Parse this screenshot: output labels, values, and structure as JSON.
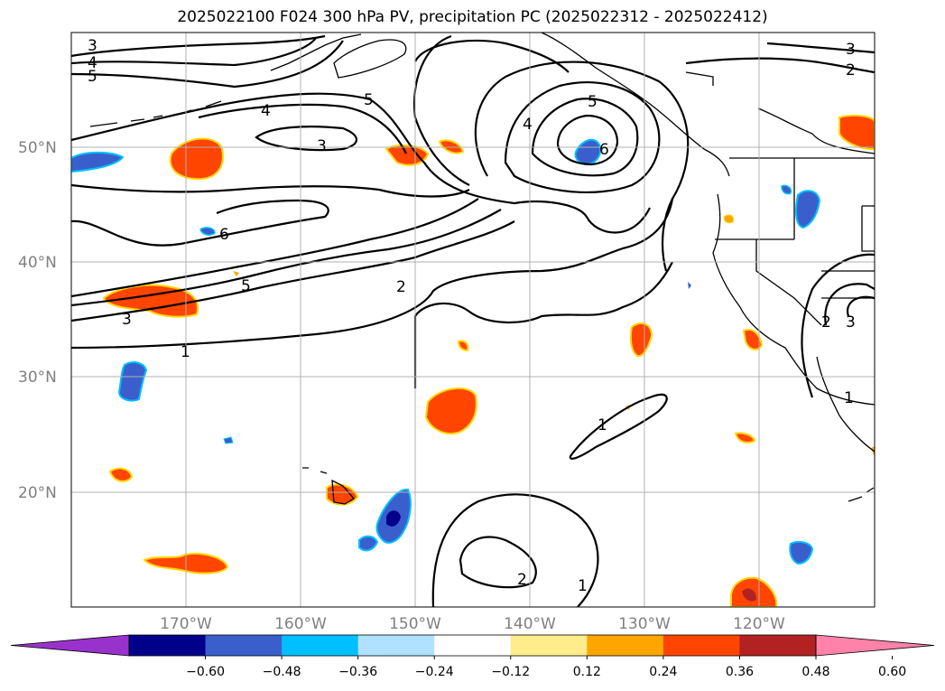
{
  "title": "2025022100 F024 300 hPa PV, precipitation PC (2025022312 - 2025022412)",
  "map": {
    "lon_labels": [
      "170°W",
      "160°W",
      "150°W",
      "140°W",
      "130°W",
      "120°W"
    ],
    "lat_labels": [
      "50°N",
      "40°N",
      "30°N",
      "20°N"
    ],
    "contour_labels": [
      {
        "text": "3",
        "id": "c1"
      },
      {
        "text": "4",
        "id": "c2"
      },
      {
        "text": "5",
        "id": "c3"
      },
      {
        "text": "4",
        "id": "c4"
      },
      {
        "text": "3",
        "id": "c5"
      },
      {
        "text": "5",
        "id": "c6"
      },
      {
        "text": "4",
        "id": "c7"
      },
      {
        "text": "5",
        "id": "c8"
      },
      {
        "text": "6",
        "id": "c9"
      },
      {
        "text": "6",
        "id": "c10"
      },
      {
        "text": "5",
        "id": "c11"
      },
      {
        "text": "3",
        "id": "c12"
      },
      {
        "text": "2",
        "id": "c13"
      },
      {
        "text": "1",
        "id": "c14"
      },
      {
        "text": "3",
        "id": "c15"
      },
      {
        "text": "2",
        "id": "c16"
      },
      {
        "text": "2",
        "id": "c17"
      },
      {
        "text": "3",
        "id": "c18"
      },
      {
        "text": "1",
        "id": "c19"
      },
      {
        "text": "1",
        "id": "c20"
      },
      {
        "text": "2",
        "id": "c21"
      },
      {
        "text": "1",
        "id": "c22"
      }
    ]
  },
  "colorbar": {
    "colors": [
      "#9932CC",
      "#00008B",
      "#3A5FCD",
      "#00BFFF",
      "#B0E2FF",
      "#FFFFFF",
      "#FFEC8B",
      "#FFA500",
      "#FF4500",
      "#B22222",
      "#FF82AB"
    ],
    "tick_labels": [
      "−0.60",
      "−0.48",
      "−0.36",
      "−0.24",
      "−0.12",
      "0.12",
      "0.24",
      "0.36",
      "0.48",
      "0.60"
    ]
  }
}
